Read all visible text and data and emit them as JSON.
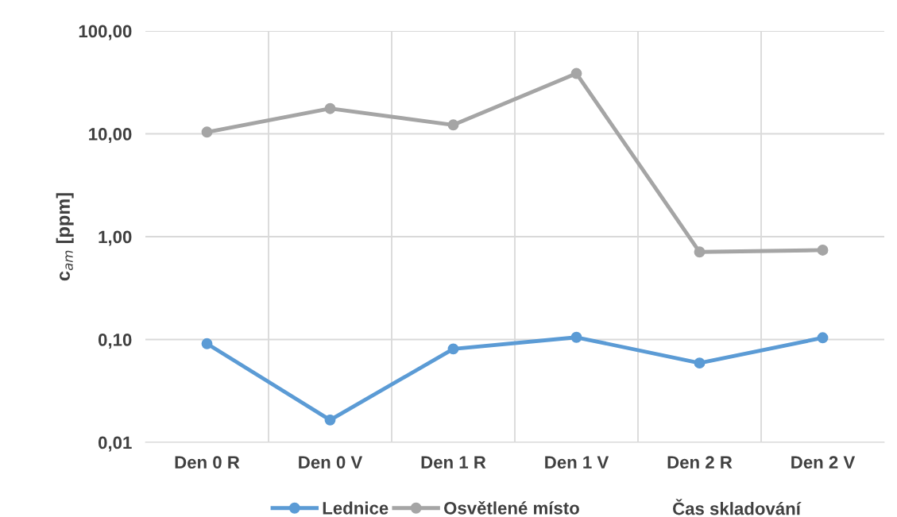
{
  "chart_data": {
    "type": "line",
    "categories": [
      "Den 0 R",
      "Den 0 V",
      "Den 1 R",
      "Den 1 V",
      "Den 2 R",
      "Den 2 V"
    ],
    "series": [
      {
        "name": "Lednice",
        "color": "#5b9bd5",
        "values": [
          0.091,
          0.0165,
          0.081,
          0.105,
          0.059,
          0.104
        ]
      },
      {
        "name": "Osvětlené místo",
        "color": "#a5a5a5",
        "values": [
          10.4,
          17.6,
          12.2,
          38.6,
          0.71,
          0.74
        ]
      }
    ],
    "ylabel": "c$_{am}$ [ppm]",
    "xlabel": "Čas skladování",
    "log": "y",
    "ylim": [
      0.01,
      100
    ],
    "yticks": [
      {
        "value": 0.01,
        "label": "0,01"
      },
      {
        "value": 0.1,
        "label": "0,10"
      },
      {
        "value": 1,
        "label": "1,00"
      },
      {
        "value": 10,
        "label": "10,00"
      },
      {
        "value": 100,
        "label": "100,00"
      }
    ],
    "grid": true,
    "legend": "bottom",
    "marker": "circle",
    "line_style": "solid"
  }
}
